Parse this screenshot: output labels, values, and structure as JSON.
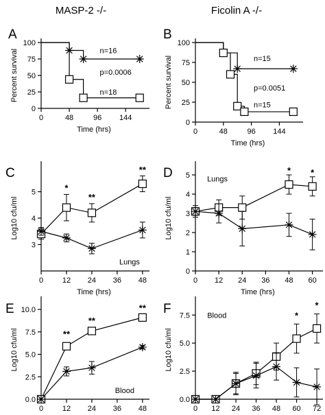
{
  "headers": {
    "left": "MASP-2 -/-",
    "right": "Ficolin A -/-"
  },
  "chart_data": [
    {
      "panel": "A",
      "type": "line",
      "step": true,
      "xlabel": "Time (hrs)",
      "ylabel": "Percent survival",
      "xlim": [
        0,
        180
      ],
      "ylim": [
        0,
        100
      ],
      "xticks": [
        0,
        48,
        96,
        144
      ],
      "yticks": [
        0,
        25,
        50,
        75,
        100
      ],
      "series": [
        {
          "marker": "asterisk",
          "x": [
            0,
            48,
            72,
            168
          ],
          "y": [
            100,
            88,
            75,
            75
          ]
        },
        {
          "marker": "square",
          "x": [
            0,
            48,
            72,
            168
          ],
          "y": [
            100,
            44,
            16,
            16
          ]
        }
      ],
      "annotations": [
        {
          "text": "n=16",
          "x": 100,
          "y": 88
        },
        {
          "text": "p=0.0006",
          "x": 100,
          "y": 55
        },
        {
          "text": "n=18",
          "x": 100,
          "y": 25
        }
      ]
    },
    {
      "panel": "B",
      "type": "line",
      "step": true,
      "xlabel": "Time (hrs)",
      "ylabel": "Percent survival",
      "xlim": [
        0,
        180
      ],
      "ylim": [
        0,
        100
      ],
      "xticks": [
        0,
        48,
        96,
        144
      ],
      "yticks": [
        0,
        25,
        50,
        75,
        100
      ],
      "series": [
        {
          "marker": "asterisk",
          "x": [
            0,
            48,
            72,
            168
          ],
          "y": [
            100,
            87,
            67,
            67
          ]
        },
        {
          "marker": "square",
          "x": [
            0,
            48,
            60,
            72,
            84,
            168
          ],
          "y": [
            100,
            87,
            60,
            20,
            13,
            13
          ]
        }
      ],
      "annotations": [
        {
          "text": "n=15",
          "x": 100,
          "y": 80
        },
        {
          "text": "p=0.0051",
          "x": 100,
          "y": 43
        },
        {
          "text": "n=15",
          "x": 100,
          "y": 22
        }
      ]
    },
    {
      "panel": "C",
      "type": "line",
      "xlabel": "Time (hrs)",
      "ylabel": "Log10 cfu/ml",
      "xlim": [
        0,
        50
      ],
      "ylim": [
        2,
        6
      ],
      "xticks": [
        0,
        12,
        24,
        36,
        48
      ],
      "yticks": [
        3,
        4,
        5
      ],
      "series": [
        {
          "marker": "square",
          "x": [
            0,
            12,
            24,
            48
          ],
          "y": [
            3.4,
            4.4,
            4.2,
            5.3
          ],
          "err": [
            0.2,
            0.5,
            0.35,
            0.3
          ]
        },
        {
          "marker": "asterisk",
          "x": [
            0,
            12,
            24,
            48
          ],
          "y": [
            3.5,
            3.25,
            2.85,
            3.55
          ],
          "err": [
            0.15,
            0.15,
            0.2,
            0.3
          ]
        }
      ],
      "stars": [
        {
          "text": "*",
          "x": 12,
          "y": 5.15
        },
        {
          "text": "**",
          "x": 24,
          "y": 4.8
        },
        {
          "text": "**",
          "x": 48,
          "y": 5.85
        }
      ],
      "label": {
        "text": "Lungs",
        "x": 37,
        "y": 2.35
      }
    },
    {
      "panel": "D",
      "type": "line",
      "xlabel": "Time (hrs)",
      "ylabel": "Log10 cfu/ml",
      "xlim": [
        0,
        64
      ],
      "ylim": [
        0,
        5.5
      ],
      "xticks": [
        0,
        12,
        24,
        36,
        48,
        60
      ],
      "yticks": [
        0,
        1,
        2,
        3,
        4,
        5
      ],
      "series": [
        {
          "marker": "square",
          "x": [
            0,
            12,
            24,
            48,
            60
          ],
          "y": [
            3.1,
            3.3,
            3.3,
            4.5,
            4.4
          ],
          "err": [
            0.3,
            0.4,
            0.6,
            0.5,
            0.5
          ]
        },
        {
          "marker": "asterisk",
          "x": [
            0,
            12,
            24,
            48,
            60
          ],
          "y": [
            3.1,
            3.0,
            2.2,
            2.4,
            1.9
          ],
          "err": [
            0.2,
            0.5,
            0.9,
            0.6,
            0.8
          ]
        }
      ],
      "stars": [
        {
          "text": "*",
          "x": 48,
          "y": 5.25
        },
        {
          "text": "*",
          "x": 60,
          "y": 5.15
        }
      ],
      "label": {
        "text": "Lungs",
        "x": 6,
        "y": 4.8
      }
    },
    {
      "panel": "E",
      "type": "line",
      "xlabel": "Time (hrs)",
      "ylabel": "Log10 cfu/ml",
      "xlim": [
        0,
        50
      ],
      "ylim": [
        0,
        11
      ],
      "xticks": [
        0,
        12,
        24,
        36,
        48
      ],
      "yticks": [
        0.0,
        2.5,
        5.0,
        7.5,
        10.0
      ],
      "series": [
        {
          "marker": "square",
          "x": [
            0,
            12,
            24,
            48
          ],
          "y": [
            0,
            5.9,
            7.6,
            9.1
          ],
          "err": [
            0,
            0.3,
            0.3,
            0.4
          ]
        },
        {
          "marker": "asterisk",
          "x": [
            0,
            12,
            24,
            48
          ],
          "y": [
            0,
            3.1,
            3.5,
            5.8
          ],
          "err": [
            0,
            0.5,
            0.7,
            0.2
          ]
        }
      ],
      "stars": [
        {
          "text": "**",
          "x": 12,
          "y": 7.3
        },
        {
          "text": "**",
          "x": 24,
          "y": 8.8
        },
        {
          "text": "**",
          "x": 48,
          "y": 10.2
        }
      ],
      "label": {
        "text": "Blood",
        "x": 35,
        "y": 1.0
      }
    },
    {
      "panel": "F",
      "type": "line",
      "xlabel": "Time (hrs)",
      "ylabel": "Log10 cfu/ml",
      "xlim": [
        0,
        74
      ],
      "ylim": [
        0,
        8.8
      ],
      "xticks": [
        0,
        12,
        24,
        36,
        48,
        60,
        72
      ],
      "yticks": [
        0.0,
        2.5,
        5.0,
        7.5
      ],
      "series": [
        {
          "marker": "square",
          "x": [
            0,
            12,
            24,
            36,
            48,
            60,
            72
          ],
          "y": [
            0,
            0,
            1.4,
            2.3,
            3.8,
            5.4,
            6.3
          ],
          "err": [
            0,
            0,
            0.9,
            1.0,
            1.2,
            1.3,
            1.3
          ]
        },
        {
          "marker": "asterisk",
          "x": [
            0,
            12,
            24,
            36,
            48,
            60,
            72
          ],
          "y": [
            0,
            0,
            1.4,
            2.1,
            2.9,
            1.5,
            1.1
          ],
          "err": [
            0,
            0,
            1.0,
            1.1,
            1.2,
            1.3,
            1.6
          ]
        }
      ],
      "stars": [
        {
          "text": "*",
          "x": 60,
          "y": 7.5
        },
        {
          "text": "*",
          "x": 72,
          "y": 8.4
        }
      ],
      "label": {
        "text": "Blood",
        "x": 7,
        "y": 7.5
      }
    }
  ]
}
